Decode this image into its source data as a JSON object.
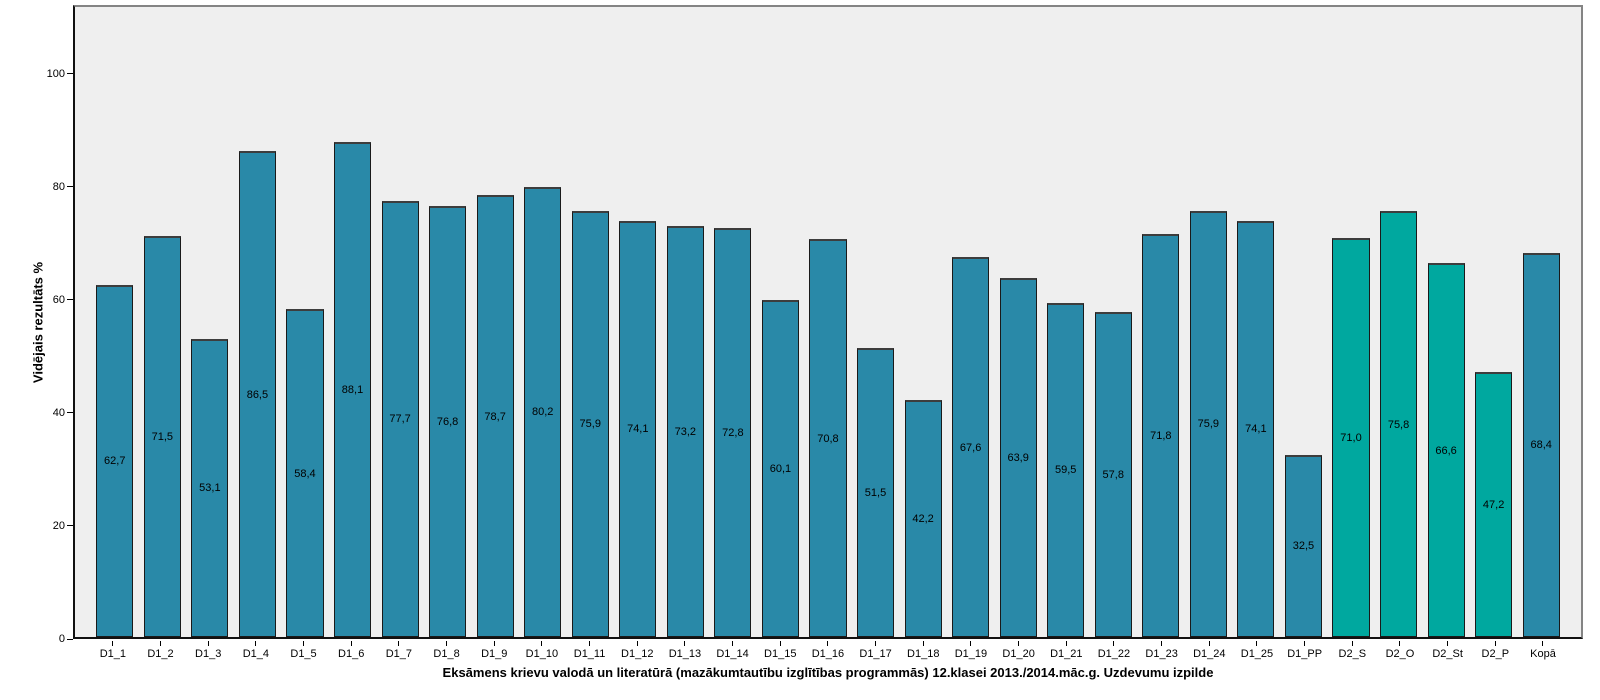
{
  "chart_data": {
    "type": "bar",
    "title": "",
    "xlabel": "Eksāmens krievu valodā un literatūrā (mazākumtautību izglītības programmās) 12.klasei 2013./2014.māc.g. Uzdevumu izpilde",
    "ylabel": "Vidējais rezultāts %",
    "ylim": [
      0,
      112.2
    ],
    "yticks": [
      0,
      20,
      40,
      60,
      80,
      100
    ],
    "grid": false,
    "legend": "none",
    "plot_background": "#efefef",
    "bar_color_default": "#2989a8",
    "bar_color_d2": "#00a89f",
    "categories": [
      "D1_1",
      "D1_2",
      "D1_3",
      "D1_4",
      "D1_5",
      "D1_6",
      "D1_7",
      "D1_8",
      "D1_9",
      "D1_10",
      "D1_11",
      "D1_12",
      "D1_13",
      "D1_14",
      "D1_15",
      "D1_16",
      "D1_17",
      "D1_18",
      "D1_19",
      "D1_20",
      "D1_21",
      "D1_22",
      "D1_23",
      "D1_24",
      "D1_25",
      "D1_PP",
      "D2_S",
      "D2_O",
      "D2_St",
      "D2_P",
      "Kopā"
    ],
    "values": [
      62.7,
      71.5,
      53.1,
      86.5,
      58.4,
      88.1,
      77.7,
      76.8,
      78.7,
      80.2,
      75.9,
      74.1,
      73.2,
      72.8,
      60.1,
      70.8,
      51.5,
      42.2,
      67.6,
      63.9,
      59.5,
      57.8,
      71.8,
      75.9,
      74.1,
      32.5,
      71.0,
      75.8,
      66.6,
      47.2,
      68.4
    ],
    "value_labels": [
      "62,7",
      "71,5",
      "53,1",
      "86,5",
      "58,4",
      "88,1",
      "77,7",
      "76,8",
      "78,7",
      "80,2",
      "75,9",
      "74,1",
      "73,2",
      "72,8",
      "60,1",
      "70,8",
      "51,5",
      "42,2",
      "67,6",
      "63,9",
      "59,5",
      "57,8",
      "71,8",
      "75,9",
      "74,1",
      "32,5",
      "71,0",
      "75,8",
      "66,6",
      "47,2",
      "68,4"
    ],
    "color_groups": [
      "default",
      "default",
      "default",
      "default",
      "default",
      "default",
      "default",
      "default",
      "default",
      "default",
      "default",
      "default",
      "default",
      "default",
      "default",
      "default",
      "default",
      "default",
      "default",
      "default",
      "default",
      "default",
      "default",
      "default",
      "default",
      "default",
      "d2",
      "d2",
      "d2",
      "d2",
      "default"
    ]
  }
}
